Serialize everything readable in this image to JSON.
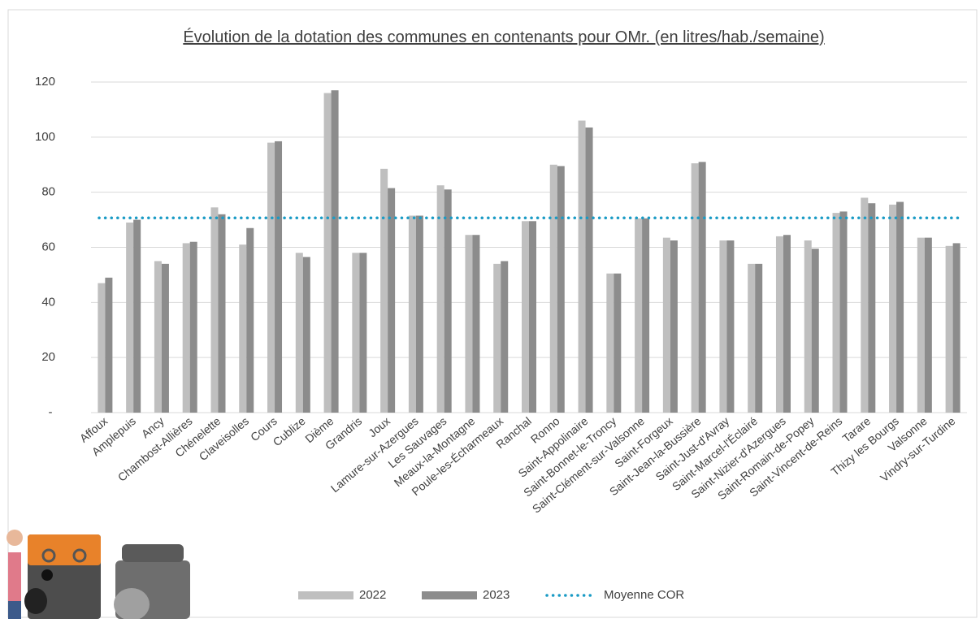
{
  "chart_data": {
    "type": "bar",
    "title": "Évolution de la dotation des communes en contenants pour OMr. (en litres/hab./semaine)",
    "categories": [
      "Affoux",
      "Amplepuis",
      "Ancy",
      "Chambost-Allières",
      "Chénelette",
      "Claveisolles",
      "Cours",
      "Cublize",
      "Dième",
      "Grandris",
      "Joux",
      "Lamure-sur-Azergues",
      "Les Sauvages",
      "Meaux-la-Montagne",
      "Poule-les-Écharmeaux",
      "Ranchal",
      "Ronno",
      "Saint-Appolinaire",
      "Saint-Bonnet-le-Troncy",
      "Saint-Clément-sur-Valsonne",
      "Saint-Forgeux",
      "Saint-Jean-la-Bussière",
      "Saint-Just-d'Avray",
      "Saint-Marcel-l'Éclairé",
      "Saint-Nizier-d'Azergues",
      "Saint-Romain-de-Popey",
      "Saint-Vincent-de-Reins",
      "Tarare",
      "Thizy les Bourgs",
      "Valsonne",
      "Vindry-sur-Turdine"
    ],
    "series": [
      {
        "name": "2022",
        "color": "#bfbfbf",
        "values": [
          47,
          69,
          55,
          61.5,
          74.5,
          61,
          98,
          58,
          116,
          58,
          88.5,
          71.5,
          82.5,
          64.5,
          54,
          69.5,
          90,
          106,
          50.5,
          70.5,
          63.5,
          90.5,
          62.5,
          54,
          64,
          62.5,
          72.5,
          78,
          75.5,
          63.5,
          60.5
        ]
      },
      {
        "name": "2023",
        "color": "#8c8c8c",
        "values": [
          49,
          70,
          54,
          62,
          72,
          67,
          98.5,
          56.5,
          117,
          58,
          81.5,
          71.5,
          81,
          64.5,
          55,
          69.5,
          89.5,
          103.5,
          50.5,
          70.5,
          62.5,
          91,
          62.5,
          54,
          64.5,
          59.5,
          73,
          76,
          76.5,
          63.5,
          61.5
        ]
      }
    ],
    "average": {
      "name": "Moyenne COR",
      "value": 70.7,
      "color": "#1a9bc5"
    },
    "ylim": [
      0,
      120
    ],
    "yticks": [
      {
        "value": 0,
        "label": "-"
      },
      20,
      40,
      60,
      80,
      100,
      120
    ],
    "grid": true
  }
}
